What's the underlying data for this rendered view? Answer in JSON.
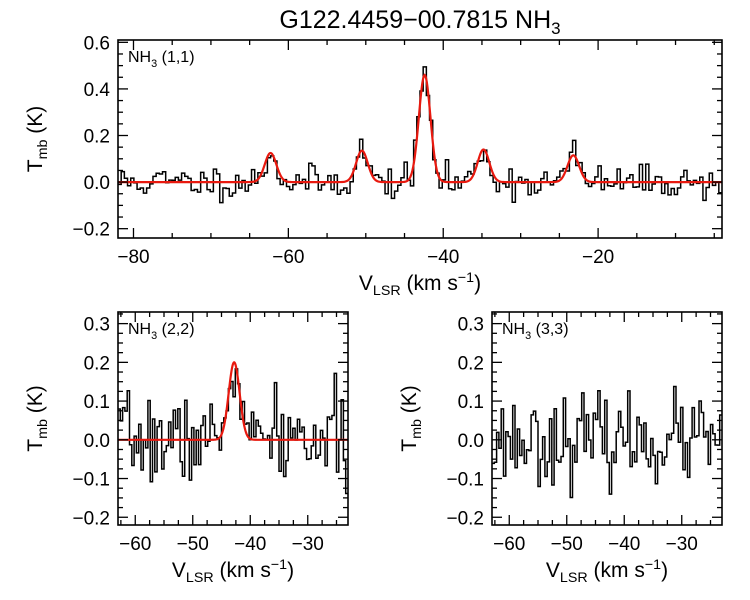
{
  "title": {
    "main": "G122.4459−00.7815 NH",
    "sub": "3"
  },
  "chart_data": [
    {
      "type": "line",
      "panel_label": {
        "main": "NH",
        "sub": "3",
        "tail": " (1,1)"
      },
      "xlabel": {
        "main": "V",
        "sub": "LSR",
        "tail": " (km s",
        "sup": "−1",
        "end": ")"
      },
      "ylabel": {
        "main": "T",
        "sub": "mb",
        "tail": " (K)"
      },
      "xlim": [
        -82,
        -4
      ],
      "ylim": [
        -0.24,
        0.61
      ],
      "xticks": [
        -80,
        -60,
        -40,
        -20
      ],
      "xtick_labels": [
        "−80",
        "−60",
        "−40",
        "−20"
      ],
      "yticks": [
        -0.2,
        0.0,
        0.2,
        0.4,
        0.6
      ],
      "ytick_labels": [
        "−0.2",
        "0.0",
        "0.2",
        "0.4",
        "0.6"
      ],
      "series": [
        {
          "color": "#000000",
          "style": "step",
          "x_start": -82,
          "x_end": -4,
          "n": 190,
          "noise": 0.035,
          "seed": 11
        },
        {
          "color": "#e8190f",
          "style": "gaussian_fit",
          "components": [
            {
              "center": -62.3,
              "amplitude": 0.125,
              "sigma": 0.75
            },
            {
              "center": -50.5,
              "amplitude": 0.135,
              "sigma": 0.75
            },
            {
              "center": -42.4,
              "amplitude": 0.46,
              "sigma": 0.75
            },
            {
              "center": -34.8,
              "amplitude": 0.14,
              "sigma": 0.75
            },
            {
              "center": -23.2,
              "amplitude": 0.115,
              "sigma": 0.75
            }
          ]
        }
      ]
    },
    {
      "type": "line",
      "panel_label": {
        "main": "NH",
        "sub": "3",
        "tail": " (2,2)"
      },
      "xlabel": {
        "main": "V",
        "sub": "LSR",
        "tail": " (km s",
        "sup": "−1",
        "end": ")"
      },
      "ylabel": {
        "main": "T",
        "sub": "mb",
        "tail": " (K)"
      },
      "xlim": [
        -63,
        -23
      ],
      "ylim": [
        -0.22,
        0.33
      ],
      "xticks": [
        -60,
        -50,
        -40,
        -30
      ],
      "xtick_labels": [
        "−60",
        "−50",
        "−40",
        "−30"
      ],
      "yticks": [
        -0.2,
        -0.1,
        0.0,
        0.1,
        0.2,
        0.3
      ],
      "ytick_labels": [
        "−0.2",
        "−0.1",
        "0.0",
        "0.1",
        "0.2",
        "0.3"
      ],
      "series": [
        {
          "color": "#000000",
          "style": "step",
          "x_start": -63,
          "x_end": -23,
          "n": 100,
          "noise": 0.055,
          "seed": 7
        },
        {
          "color": "#e8190f",
          "style": "gaussian_fit",
          "components": [
            {
              "center": -42.8,
              "amplitude": 0.2,
              "sigma": 0.95
            }
          ]
        }
      ]
    },
    {
      "type": "line",
      "panel_label": {
        "main": "NH",
        "sub": "3",
        "tail": " (3,3)"
      },
      "xlabel": {
        "main": "V",
        "sub": "LSR",
        "tail": " (km s",
        "sup": "−1",
        "end": ")"
      },
      "ylabel": {
        "main": "T",
        "sub": "mb",
        "tail": " (K)"
      },
      "xlim": [
        -63,
        -23
      ],
      "ylim": [
        -0.22,
        0.33
      ],
      "xticks": [
        -60,
        -50,
        -40,
        -30
      ],
      "xtick_labels": [
        "−60",
        "−50",
        "−40",
        "−30"
      ],
      "yticks": [
        -0.2,
        -0.1,
        0.0,
        0.1,
        0.2,
        0.3
      ],
      "ytick_labels": [
        "−0.2",
        "−0.1",
        "0.0",
        "0.1",
        "0.2",
        "0.3"
      ],
      "series": [
        {
          "color": "#000000",
          "style": "step",
          "x_start": -63,
          "x_end": -23,
          "n": 100,
          "noise": 0.055,
          "seed": 23
        }
      ]
    }
  ]
}
